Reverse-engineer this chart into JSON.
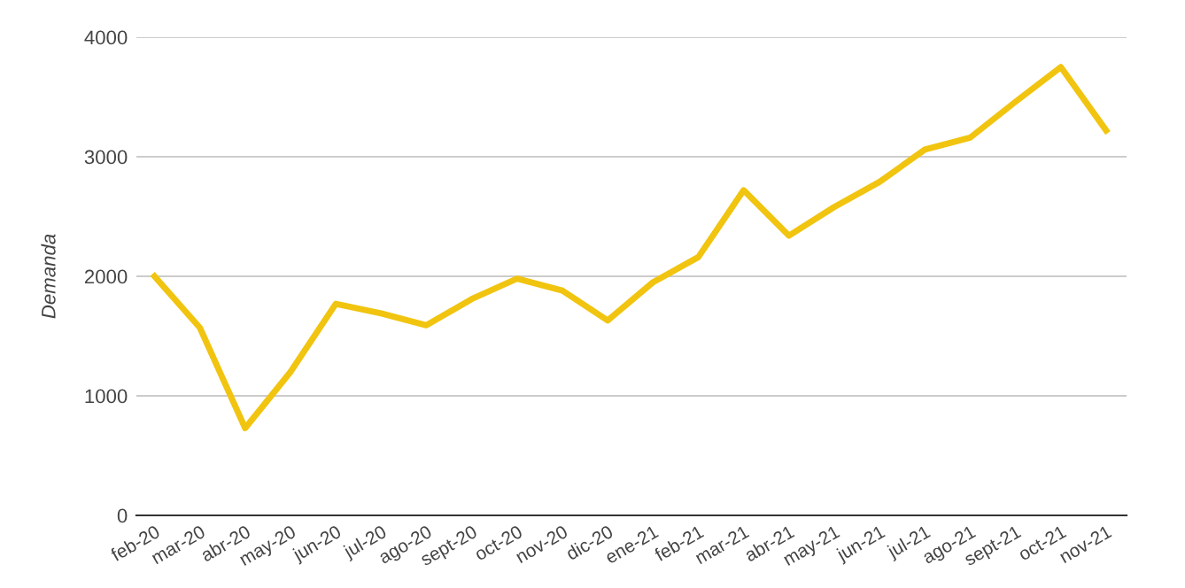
{
  "chart_data": {
    "type": "line",
    "ylabel": "Demanda",
    "categories": [
      "feb-20",
      "mar-20",
      "abr-20",
      "may-20",
      "jun-20",
      "jul-20",
      "ago-20",
      "sept-20",
      "oct-20",
      "nov-20",
      "dic-20",
      "ene-21",
      "feb-21",
      "mar-21",
      "abr-21",
      "may-21",
      "jun-21",
      "jul-21",
      "ago-21",
      "sept-21",
      "oct-21",
      "nov-21"
    ],
    "series": [
      {
        "color": "#f1c40f",
        "values": [
          2000,
          1570,
          730,
          1200,
          1770,
          1690,
          1590,
          1810,
          1980,
          1880,
          1630,
          1950,
          2160,
          2720,
          2340,
          2580,
          2790,
          3060,
          3160,
          3460,
          3750,
          3220
        ]
      }
    ],
    "ylim": [
      0,
      4000
    ],
    "yticks": [
      0,
      1000,
      2000,
      3000,
      4000
    ],
    "grid": "y",
    "marker": "none",
    "line_style": "solid"
  }
}
